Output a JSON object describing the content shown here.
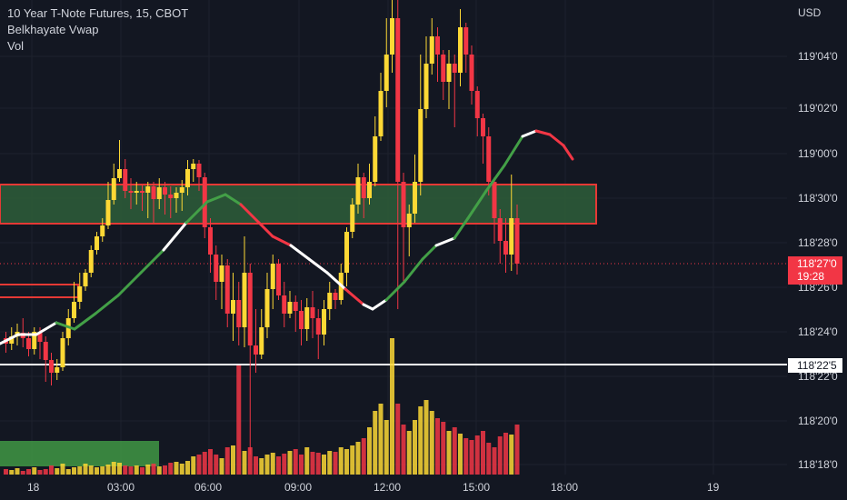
{
  "legend": {
    "symbol": "10 Year T-Note Futures, 15, CBOT",
    "indicator_1": "Belkhayate Vwap",
    "indicator_2": "Vol"
  },
  "axis": {
    "currency": "USD",
    "price_ticks": [
      "119'04'0",
      "119'02'0",
      "119'00'0",
      "118'30'0",
      "118'28'0",
      "118'26'0",
      "118'24'0",
      "118'22'0",
      "118'20'0",
      "118'18'0"
    ],
    "time_ticks": [
      "18",
      "03:00",
      "06:00",
      "09:00",
      "12:00",
      "15:00",
      "18:00",
      "19"
    ]
  },
  "last_price": {
    "value": "118'27'0",
    "countdown": "19:28"
  },
  "horizontal_line": {
    "value": "118'22'5"
  },
  "colors": {
    "background": "#131722",
    "up": "#fdd835",
    "down": "#f23645",
    "vwap_green": "#43a047",
    "vwap_white": "#ffffff",
    "vwap_red": "#f23645",
    "zone_fill": "#2e5e3a",
    "zone_border": "#e53935",
    "grid": "#1e222d"
  }
}
